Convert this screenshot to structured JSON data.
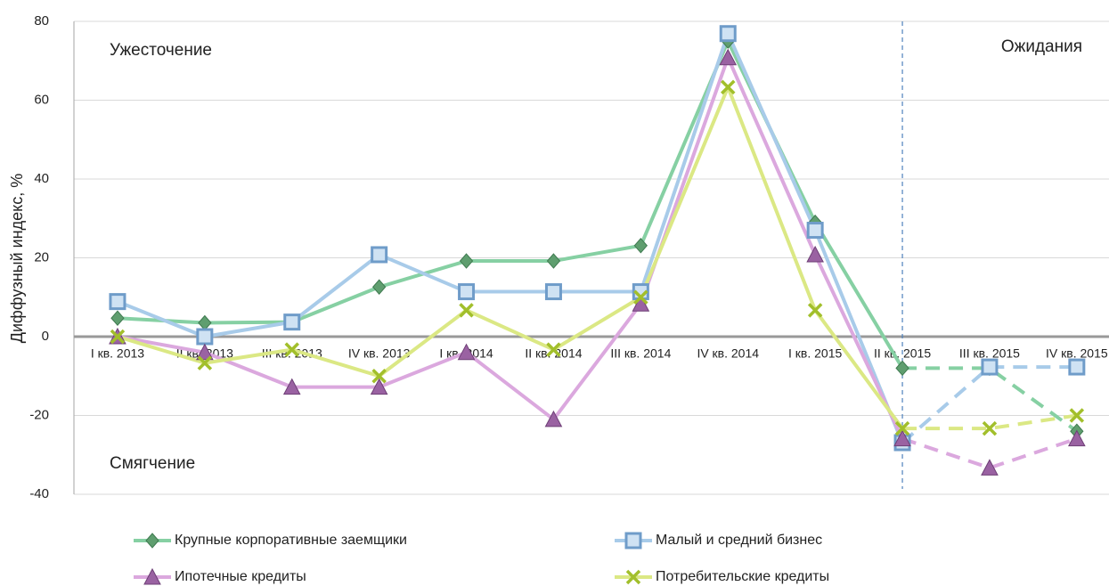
{
  "chart_data": {
    "type": "line",
    "y_label": "Диффузный индекс, %",
    "annotations": {
      "top_left": "Ужесточение",
      "bottom_left": "Смягчение",
      "top_right": "Ожидания"
    },
    "categories": [
      "I кв. 2013",
      "II кв. 2013",
      "III кв. 2013",
      "IV кв. 2013",
      "I кв. 2014",
      "II кв. 2014",
      "III кв. 2014",
      "IV кв. 2014",
      "I кв. 2015",
      "II кв. 2015",
      "III кв. 2015",
      "IV кв. 2015"
    ],
    "forecast_start": 9,
    "series": [
      {
        "name": "Крупные корпоративные заемщики",
        "color": "#86d0a3",
        "marker": "diamond",
        "marker_color": "#5f9e6f",
        "values": [
          4.7,
          3.5,
          3.7,
          12.6,
          19.2,
          19.2,
          23.1,
          75,
          29,
          -8,
          -8,
          -24
        ]
      },
      {
        "name": "Малый и средний бизнес",
        "color": "#a8cbe9",
        "marker": "square",
        "marker_color": "#6f9cc9",
        "values": [
          8.9,
          0,
          3.7,
          20.8,
          11.4,
          11.4,
          11.4,
          76.9,
          27,
          -26.9,
          -7.7,
          -7.7
        ]
      },
      {
        "name": "Ипотечные кредиты",
        "color": "#dba8de",
        "marker": "triangle",
        "marker_color": "#9a62a2",
        "values": [
          0,
          -4,
          -12.8,
          -12.8,
          -4,
          -21,
          8.3,
          70.8,
          20.8,
          -25.9,
          -33.3,
          -25.9
        ]
      },
      {
        "name": "Потребительские кредиты",
        "color": "#dbe884",
        "marker": "x",
        "marker_color": "#a2bf2b",
        "values": [
          0,
          -6.7,
          -3.3,
          -10,
          6.7,
          -3.3,
          10,
          63.3,
          6.7,
          -23.3,
          -23.3,
          -20
        ]
      }
    ],
    "ylim": [
      -40,
      80
    ],
    "yticks": [
      -40,
      -20,
      0,
      20,
      40,
      60,
      80
    ],
    "grid": true,
    "legend": "bottom"
  }
}
